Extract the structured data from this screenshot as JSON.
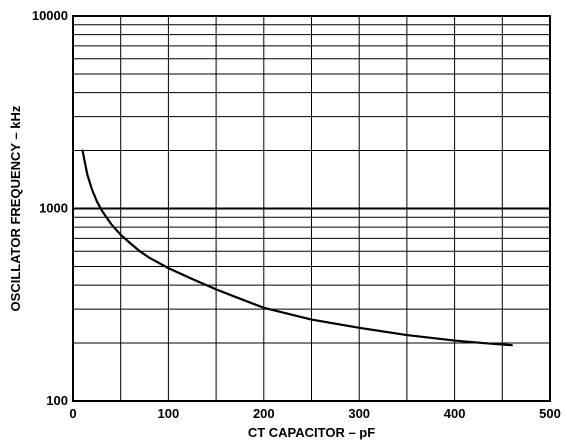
{
  "chart_data": {
    "type": "line",
    "title": "",
    "xlabel": "CT CAPACITOR – pF",
    "ylabel": "OSCILLATOR FREQUENCY – kHz",
    "x_scale": "linear",
    "y_scale": "log",
    "xlim": [
      0,
      500
    ],
    "ylim": [
      100,
      10000
    ],
    "x_ticks": [
      0,
      100,
      200,
      300,
      400,
      500
    ],
    "x_tick_labels": [
      "0",
      "100",
      "200",
      "300",
      "400",
      "500"
    ],
    "y_ticks": [
      100,
      1000,
      10000
    ],
    "y_tick_labels": [
      "100",
      "1000",
      "10000"
    ],
    "grid": true,
    "legend": "none",
    "series": [
      {
        "color": "#000000",
        "x": [
          10,
          15,
          20,
          25,
          30,
          40,
          50,
          60,
          70,
          80,
          100,
          125,
          150,
          175,
          200,
          250,
          300,
          350,
          400,
          430,
          460
        ],
        "y": [
          2000,
          1500,
          1250,
          1090,
          980,
          830,
          730,
          660,
          600,
          555,
          490,
          430,
          380,
          340,
          305,
          265,
          240,
          220,
          206,
          200,
          195
        ]
      }
    ]
  }
}
